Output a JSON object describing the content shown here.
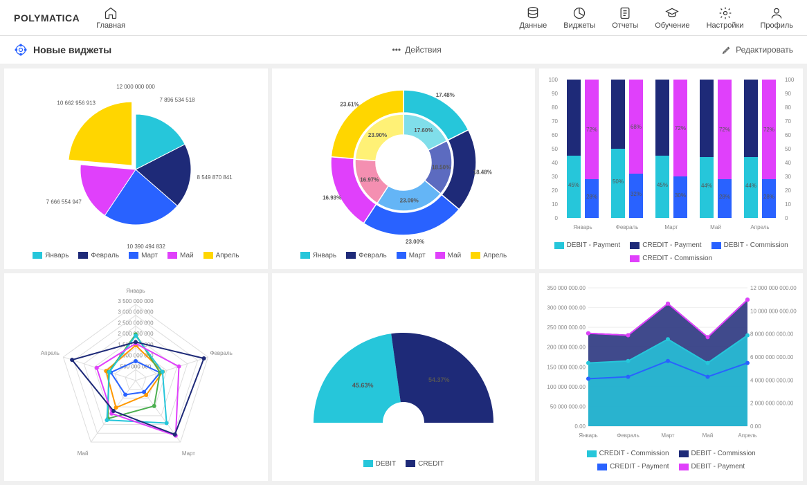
{
  "app": {
    "logo": "POLYMATICA"
  },
  "nav": {
    "home": "Главная",
    "data": "Данные",
    "widgets": "Виджеты",
    "reports": "Отчеты",
    "learning": "Обучение",
    "settings": "Настройки",
    "profile": "Профиль"
  },
  "subbar": {
    "title": "Новые виджеты",
    "actions": "Действия",
    "edit": "Редактировать"
  },
  "months": [
    "Январь",
    "Февраль",
    "Март",
    "Май",
    "Апрель"
  ],
  "colors": {
    "jan": "#26c6da",
    "feb": "#1e2a78",
    "mar": "#2962ff",
    "may": "#e040fb",
    "apr": "#ffd600",
    "debit": "#26c6da",
    "credit": "#1e2a78",
    "grid": "#e0e0e0",
    "axis": "#888"
  },
  "pie": {
    "type": "pie",
    "top_label": "12 000 000 000",
    "slices": [
      {
        "label": "7 896 534 518",
        "color": "#26c6da"
      },
      {
        "label": "8 549 870 841",
        "color": "#1e2a78"
      },
      {
        "label": "10 390 494 832",
        "color": "#2962ff"
      },
      {
        "label": "7 666 554 947",
        "color": "#e040fb"
      },
      {
        "label": "10 662 956 913",
        "color": "#ffd600"
      }
    ]
  },
  "donut": {
    "type": "donut",
    "outer": [
      {
        "pct": "17.48%",
        "color": "#26c6da"
      },
      {
        "pct": "18.48%",
        "color": "#1e2a78"
      },
      {
        "pct": "23.00%",
        "color": "#2962ff"
      },
      {
        "pct": "16.93%",
        "color": "#e040fb"
      },
      {
        "pct": "23.61%",
        "color": "#ffd600"
      }
    ],
    "inner": [
      {
        "pct": "17.60%",
        "color": "#80deea"
      },
      {
        "pct": "18.50%",
        "color": "#5c6bc0"
      },
      {
        "pct": "23.09%",
        "color": "#64b5f6"
      },
      {
        "pct": "16.97%",
        "color": "#f48fb1"
      },
      {
        "pct": "23.90%",
        "color": "#fff176"
      }
    ]
  },
  "stacked_bar": {
    "type": "stacked-bar",
    "ylim": [
      0,
      100
    ],
    "ytick_step": 10,
    "categories": [
      "Январь",
      "Февраль",
      "Март",
      "Май",
      "Апрель"
    ],
    "series": [
      {
        "name": "DEBIT - Payment",
        "color": "#26c6da"
      },
      {
        "name": "CREDIT - Payment",
        "color": "#1e2a78"
      },
      {
        "name": "DEBIT - Commission",
        "color": "#2962ff"
      },
      {
        "name": "CREDIT - Commission",
        "color": "#e040fb"
      }
    ],
    "left_pairs": [
      [
        45,
        72
      ],
      [
        50,
        68
      ],
      [
        45,
        72
      ],
      [
        44,
        72
      ],
      [
        44,
        72
      ]
    ],
    "right_pairs": [
      [
        28,
        72
      ],
      [
        32,
        68
      ],
      [
        30,
        72
      ],
      [
        28,
        72
      ],
      [
        28,
        72
      ]
    ]
  },
  "radar": {
    "type": "radar",
    "axes": [
      "Январь",
      "Февраль",
      "Март",
      "Май",
      "Апрель"
    ],
    "rings": [
      "500 000 000",
      "1 000 000 000",
      "1 500 000 000",
      "2 000 000 000",
      "2 500 000 000",
      "3 000 000 000",
      "3 500 000 000"
    ],
    "series_colors": [
      "#2962ff",
      "#ff9800",
      "#4caf50",
      "#26c6da",
      "#e040fb",
      "#1e2a78"
    ]
  },
  "semi": {
    "type": "semi-donut",
    "slices": [
      {
        "name": "DEBIT",
        "pct": "45.63%",
        "val": 45.63,
        "color": "#26c6da"
      },
      {
        "name": "CREDIT",
        "pct": "54.37%",
        "val": 54.37,
        "color": "#1e2a78"
      }
    ]
  },
  "area": {
    "type": "area-line",
    "categories": [
      "Январь",
      "Февраль",
      "Март",
      "Май",
      "Апрель"
    ],
    "y_left": {
      "min": 0,
      "max": 350000000,
      "step": 50000000,
      "labels": [
        "0.00",
        "50 000 000.00",
        "100 000 000.00",
        "150 000 000.00",
        "200 000 000.00",
        "250 000 000.00",
        "300 000 000.00",
        "350 000 000.00"
      ]
    },
    "y_right": {
      "min": 0,
      "max": 12000000000,
      "step": 2000000000,
      "labels": [
        "0.00",
        "2 000 000 000.00",
        "4 000 000 000.00",
        "6 000 000 000.00",
        "8 000 000 000.00",
        "10 000 000 000.00",
        "12 000 000 000.00"
      ]
    },
    "series": [
      {
        "name": "CREDIT - Commission",
        "color": "#26c6da",
        "values": [
          160,
          165,
          220,
          160,
          230
        ]
      },
      {
        "name": "DEBIT - Commission",
        "color": "#1e2a78",
        "values": [
          235,
          230,
          310,
          225,
          320
        ]
      },
      {
        "name": "CREDIT - Payment",
        "color": "#2962ff",
        "values": [
          120,
          125,
          165,
          125,
          160
        ]
      },
      {
        "name": "DEBIT - Payment",
        "color": "#e040fb",
        "values": [
          235,
          230,
          310,
          225,
          320
        ]
      }
    ]
  }
}
